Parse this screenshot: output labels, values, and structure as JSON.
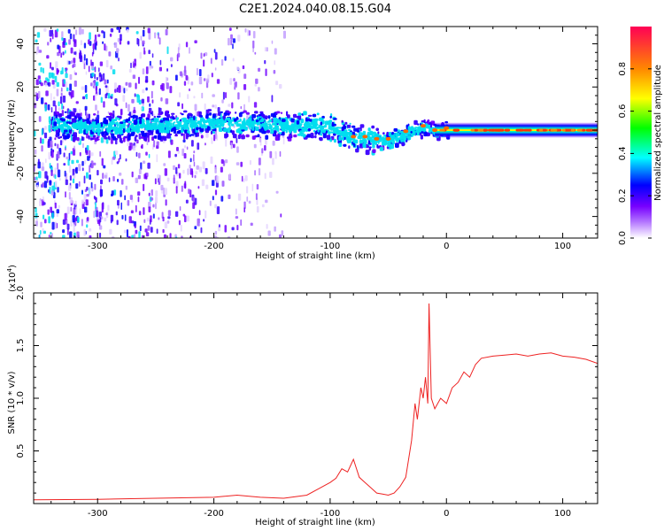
{
  "title": "C2E1.2024.040.08.15.G04",
  "chart_data": [
    {
      "type": "heatmap",
      "xlabel": "Height of straight line (km)",
      "ylabel": "Frequency (Hz)",
      "xlim": [
        -355,
        130
      ],
      "ylim": [
        -50,
        48
      ],
      "xticks": [
        -300,
        -200,
        -100,
        0,
        100
      ],
      "yticks": [
        -40,
        -20,
        0,
        20,
        40
      ],
      "colorbar": {
        "label": "Normalized spectral amplitude",
        "range": [
          0,
          1
        ],
        "ticks": [
          0.0,
          0.2,
          0.4,
          0.6,
          0.8
        ],
        "colormap": "rainbow",
        "colors": [
          "#ffffff",
          "#7700ff",
          "#0000ff",
          "#00ffff",
          "#00ff00",
          "#ffff00",
          "#ff8800",
          "#ff0055"
        ]
      },
      "ridge_frequency": {
        "x": [
          -330,
          -300,
          -250,
          -200,
          -150,
          -120,
          -100,
          -90,
          -80,
          -70,
          -60,
          -50,
          -40,
          -30,
          -20,
          -10,
          0,
          10,
          20,
          50,
          100,
          130
        ],
        "y": [
          3,
          2,
          3,
          4,
          3,
          3,
          2,
          -1,
          -3,
          -3,
          -4,
          -4,
          -2,
          1,
          2,
          0,
          1,
          0,
          0,
          0,
          0,
          0
        ]
      }
    },
    {
      "type": "line",
      "xlabel": "Height of straight line (km)",
      "ylabel": "SNR (10 * v/v)",
      "yscale_label": "(x10",
      "yscale_exponent": "4",
      "yscale_suffix": ")",
      "xlim": [
        -355,
        130
      ],
      "ylim": [
        0,
        20000
      ],
      "xticks": [
        -300,
        -200,
        -100,
        0,
        100
      ],
      "yticks": [
        5000,
        10000,
        15000,
        20000
      ],
      "ytick_labels": [
        "0.5",
        "1.0",
        "1.5",
        "2.0"
      ],
      "series_color": "#ee2222",
      "series": [
        {
          "x": [
            -355,
            -300,
            -250,
            -200,
            -180,
            -160,
            -140,
            -120,
            -110,
            -100,
            -95,
            -90,
            -85,
            -80,
            -75,
            -70,
            -65,
            -60,
            -55,
            -50,
            -45,
            -40,
            -35,
            -30,
            -27,
            -25,
            -22,
            -20,
            -18,
            -16,
            -15,
            -13,
            -10,
            -5,
            0,
            5,
            10,
            15,
            20,
            25,
            30,
            40,
            50,
            60,
            70,
            80,
            90,
            100,
            110,
            120,
            130
          ],
          "y": [
            350,
            400,
            500,
            600,
            800,
            600,
            500,
            800,
            1400,
            2000,
            2400,
            3300,
            3000,
            4200,
            2500,
            2000,
            1500,
            1000,
            900,
            800,
            1000,
            1600,
            2500,
            6000,
            9500,
            8000,
            11000,
            10000,
            12000,
            9500,
            19000,
            10000,
            9000,
            10000,
            9500,
            11000,
            11500,
            12500,
            12000,
            13200,
            13800,
            14000,
            14100,
            14200,
            14000,
            14200,
            14300,
            14000,
            13900,
            13700,
            13300
          ]
        }
      ]
    }
  ]
}
